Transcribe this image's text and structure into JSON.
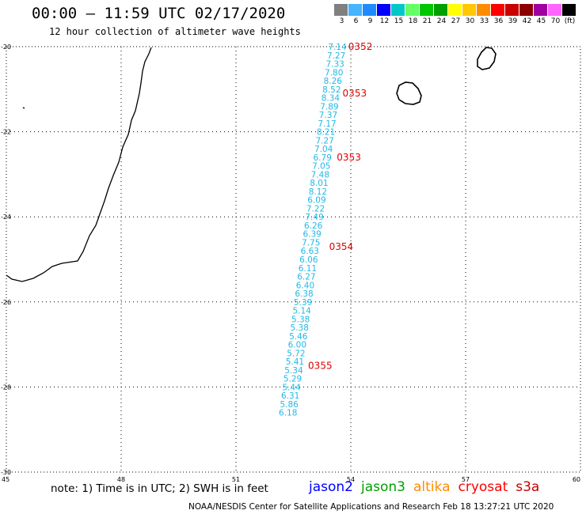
{
  "title": "00:00 – 11:59 UTC 02/17/2020",
  "subtitle": "12 hour collection of altimeter wave heights",
  "colorbar": {
    "labels": [
      "3",
      "6",
      "9",
      "12",
      "15",
      "18",
      "21",
      "24",
      "27",
      "30",
      "33",
      "36",
      "39",
      "42",
      "45",
      "70",
      "(ft)"
    ],
    "colors": [
      "#808080",
      "#46b4ff",
      "#1e8cff",
      "#0000ff",
      "#00c8c8",
      "#64ff64",
      "#00c800",
      "#00a000",
      "#ffff00",
      "#ffc800",
      "#ff8c00",
      "#ff0000",
      "#c80000",
      "#8c0000",
      "#a000a0",
      "#ff64ff",
      "#000000"
    ]
  },
  "axes": {
    "lon_ticks": [
      45,
      48,
      51,
      54,
      57,
      60
    ],
    "lon_labels": [
      "45",
      "48",
      "51",
      "54",
      "57",
      "60"
    ],
    "lat_ticks": [
      -20,
      -22,
      -24,
      -26,
      -28,
      -30
    ],
    "lat_labels": [
      "-20",
      "-22",
      "-24",
      "-26",
      "-28",
      "-30"
    ],
    "lon_range": [
      45,
      60
    ],
    "lat_range": [
      -30,
      -20
    ]
  },
  "swh_track": {
    "color": "#22b8e6",
    "points": [
      {
        "lat": -20.0,
        "lon": 53.65,
        "value": "7.14"
      },
      {
        "lat": -20.2,
        "lon": 53.62,
        "value": "7.27"
      },
      {
        "lat": -20.4,
        "lon": 53.59,
        "value": "7.33"
      },
      {
        "lat": -20.6,
        "lon": 53.56,
        "value": "7.80"
      },
      {
        "lat": -20.8,
        "lon": 53.53,
        "value": "8.26"
      },
      {
        "lat": -21.0,
        "lon": 53.5,
        "value": "8.52"
      },
      {
        "lat": -21.2,
        "lon": 53.47,
        "value": "8.34"
      },
      {
        "lat": -21.4,
        "lon": 53.44,
        "value": "7.89"
      },
      {
        "lat": -21.6,
        "lon": 53.41,
        "value": "7.37"
      },
      {
        "lat": -21.8,
        "lon": 53.38,
        "value": "7.17"
      },
      {
        "lat": -22.0,
        "lon": 53.35,
        "value": "8.21"
      },
      {
        "lat": -22.2,
        "lon": 53.32,
        "value": "7.27"
      },
      {
        "lat": -22.4,
        "lon": 53.29,
        "value": "7.04"
      },
      {
        "lat": -22.6,
        "lon": 53.26,
        "value": "6.79"
      },
      {
        "lat": -22.8,
        "lon": 53.23,
        "value": "7.05"
      },
      {
        "lat": -23.0,
        "lon": 53.2,
        "value": "7.48"
      },
      {
        "lat": -23.2,
        "lon": 53.17,
        "value": "8.01"
      },
      {
        "lat": -23.4,
        "lon": 53.14,
        "value": "8.12"
      },
      {
        "lat": -23.6,
        "lon": 53.11,
        "value": "6.09"
      },
      {
        "lat": -23.8,
        "lon": 53.08,
        "value": "7.22"
      },
      {
        "lat": -24.0,
        "lon": 53.05,
        "value": "7.49"
      },
      {
        "lat": -24.2,
        "lon": 53.02,
        "value": "6.26"
      },
      {
        "lat": -24.4,
        "lon": 52.99,
        "value": "6.39"
      },
      {
        "lat": -24.6,
        "lon": 52.96,
        "value": "7.75"
      },
      {
        "lat": -24.8,
        "lon": 52.93,
        "value": "6.63"
      },
      {
        "lat": -25.0,
        "lon": 52.9,
        "value": "6.06"
      },
      {
        "lat": -25.2,
        "lon": 52.87,
        "value": "6.11"
      },
      {
        "lat": -25.4,
        "lon": 52.84,
        "value": "6.27"
      },
      {
        "lat": -25.6,
        "lon": 52.81,
        "value": "6.40"
      },
      {
        "lat": -25.8,
        "lon": 52.78,
        "value": "6.38"
      },
      {
        "lat": -26.0,
        "lon": 52.75,
        "value": "5.39"
      },
      {
        "lat": -26.2,
        "lon": 52.72,
        "value": "5.14"
      },
      {
        "lat": -26.4,
        "lon": 52.69,
        "value": "5.38"
      },
      {
        "lat": -26.6,
        "lon": 52.66,
        "value": "5.38"
      },
      {
        "lat": -26.8,
        "lon": 52.63,
        "value": "5.46"
      },
      {
        "lat": -27.0,
        "lon": 52.6,
        "value": "6.00"
      },
      {
        "lat": -27.2,
        "lon": 52.57,
        "value": "5.72"
      },
      {
        "lat": -27.4,
        "lon": 52.54,
        "value": "5.41"
      },
      {
        "lat": -27.6,
        "lon": 52.51,
        "value": "5.34"
      },
      {
        "lat": -27.8,
        "lon": 52.48,
        "value": "5.29"
      },
      {
        "lat": -28.0,
        "lon": 52.45,
        "value": "5.44"
      },
      {
        "lat": -28.2,
        "lon": 52.42,
        "value": "6.31"
      },
      {
        "lat": -28.4,
        "lon": 52.39,
        "value": "5.86"
      },
      {
        "lat": -28.6,
        "lon": 52.36,
        "value": "6.18"
      }
    ]
  },
  "pass_times": {
    "color": "#e00000",
    "items": [
      {
        "lat": -20.0,
        "lon": 54.25,
        "text": "0352"
      },
      {
        "lat": -21.1,
        "lon": 54.1,
        "text": "0353"
      },
      {
        "lat": -22.6,
        "lon": 53.95,
        "text": "0353"
      },
      {
        "lat": -24.7,
        "lon": 53.75,
        "text": "0354"
      },
      {
        "lat": -27.5,
        "lon": 53.2,
        "text": "0355"
      }
    ]
  },
  "note": "note:  1) Time is in UTC;  2) SWH is in feet",
  "legend": [
    {
      "name": "jason2",
      "color": "#0000ff"
    },
    {
      "name": "jason3",
      "color": "#00a000"
    },
    {
      "name": "altika",
      "color": "#ff8c00"
    },
    {
      "name": "cryosat",
      "color": "#ff0000"
    },
    {
      "name": "s3a",
      "color": "#c80000"
    }
  ],
  "credit": "NOAA/NESDIS Center for Satellite Applications and Research     Feb 18 13:27:21 UTC 2020"
}
